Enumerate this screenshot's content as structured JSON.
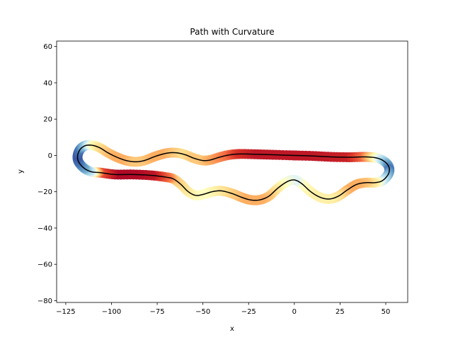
{
  "chart_data": {
    "type": "scatter",
    "title": "Path with Curvature",
    "xlabel": "x",
    "ylabel": "y",
    "xlim": [
      -130,
      62
    ],
    "ylim": [
      -81,
      63
    ],
    "x_ticks": [
      -125,
      -100,
      -75,
      -50,
      -25,
      0,
      25,
      50
    ],
    "x_tick_labels": [
      "−125",
      "−100",
      "−75",
      "−50",
      "−25",
      "0",
      "25",
      "50"
    ],
    "y_ticks": [
      -80,
      -60,
      -40,
      -20,
      0,
      20,
      40,
      60
    ],
    "y_tick_labels": [
      "−80",
      "−60",
      "−40",
      "−20",
      "0",
      "20",
      "40",
      "60"
    ],
    "grid": false,
    "colormap": "RdYlBu",
    "colormap_stops": [
      "#a50026",
      "#d73027",
      "#f46d43",
      "#fdae61",
      "#fee090",
      "#ffffbf",
      "#e0f3f8",
      "#abd9e9",
      "#74add1",
      "#4575b4",
      "#313695"
    ],
    "path_line_color": "#000000",
    "series": [
      {
        "points": [
          {
            "x": 0,
            "y": 0,
            "c": 0.05
          },
          {
            "x": 10,
            "y": -0.3,
            "c": 0.05
          },
          {
            "x": 20,
            "y": -0.8,
            "c": 0.06
          },
          {
            "x": 30,
            "y": -1.0,
            "c": 0.07
          },
          {
            "x": 38,
            "y": -0.8,
            "c": 0.2
          },
          {
            "x": 44,
            "y": -1.2,
            "c": 0.45
          },
          {
            "x": 48,
            "y": -2.5,
            "c": 0.65
          },
          {
            "x": 51,
            "y": -5,
            "c": 0.8
          },
          {
            "x": 52,
            "y": -8,
            "c": 0.9
          },
          {
            "x": 51,
            "y": -11,
            "c": 0.8
          },
          {
            "x": 48,
            "y": -14,
            "c": 0.65
          },
          {
            "x": 44,
            "y": -15,
            "c": 0.45
          },
          {
            "x": 39,
            "y": -15,
            "c": 0.35
          },
          {
            "x": 34,
            "y": -16,
            "c": 0.3
          },
          {
            "x": 29,
            "y": -19,
            "c": 0.3
          },
          {
            "x": 24,
            "y": -22.5,
            "c": 0.4
          },
          {
            "x": 19,
            "y": -24,
            "c": 0.45
          },
          {
            "x": 14,
            "y": -23,
            "c": 0.45
          },
          {
            "x": 9,
            "y": -20,
            "c": 0.45
          },
          {
            "x": 4,
            "y": -15.5,
            "c": 0.5
          },
          {
            "x": 0,
            "y": -13.5,
            "c": 0.6
          },
          {
            "x": -4,
            "y": -14.5,
            "c": 0.55
          },
          {
            "x": -9,
            "y": -18,
            "c": 0.45
          },
          {
            "x": -14,
            "y": -22.5,
            "c": 0.35
          },
          {
            "x": -19,
            "y": -24.5,
            "c": 0.3
          },
          {
            "x": -24,
            "y": -24.5,
            "c": 0.3
          },
          {
            "x": -29,
            "y": -23,
            "c": 0.3
          },
          {
            "x": -34,
            "y": -21,
            "c": 0.35
          },
          {
            "x": -40,
            "y": -19.5,
            "c": 0.4
          },
          {
            "x": -45,
            "y": -20,
            "c": 0.45
          },
          {
            "x": -50,
            "y": -21.5,
            "c": 0.5
          },
          {
            "x": -54,
            "y": -22,
            "c": 0.5
          },
          {
            "x": -58,
            "y": -20,
            "c": 0.45
          },
          {
            "x": -62,
            "y": -16,
            "c": 0.4
          },
          {
            "x": -66,
            "y": -13,
            "c": 0.35
          },
          {
            "x": -70,
            "y": -12,
            "c": 0.2
          },
          {
            "x": -78,
            "y": -11,
            "c": 0.05
          },
          {
            "x": -88,
            "y": -10.5,
            "c": 0.02
          },
          {
            "x": -98,
            "y": -10.5,
            "c": 0.02
          },
          {
            "x": -106,
            "y": -9.5,
            "c": 0.15
          },
          {
            "x": -111,
            "y": -9,
            "c": 0.6
          },
          {
            "x": -115,
            "y": -7,
            "c": 0.8
          },
          {
            "x": -118,
            "y": -3.5,
            "c": 0.9
          },
          {
            "x": -118.5,
            "y": 0,
            "c": 0.95
          },
          {
            "x": -117,
            "y": 3.5,
            "c": 0.9
          },
          {
            "x": -114,
            "y": 5.5,
            "c": 0.75
          },
          {
            "x": -110,
            "y": 5.5,
            "c": 0.5
          },
          {
            "x": -106,
            "y": 4,
            "c": 0.4
          },
          {
            "x": -102,
            "y": 1.5,
            "c": 0.35
          },
          {
            "x": -97,
            "y": -1,
            "c": 0.3
          },
          {
            "x": -92,
            "y": -2.8,
            "c": 0.3
          },
          {
            "x": -87,
            "y": -3.5,
            "c": 0.35
          },
          {
            "x": -82,
            "y": -2.8,
            "c": 0.35
          },
          {
            "x": -76,
            "y": -0.5,
            "c": 0.3
          },
          {
            "x": -70,
            "y": 1.2,
            "c": 0.3
          },
          {
            "x": -65,
            "y": 1.5,
            "c": 0.35
          },
          {
            "x": -60,
            "y": 0.5,
            "c": 0.4
          },
          {
            "x": -55,
            "y": -1.5,
            "c": 0.35
          },
          {
            "x": -50,
            "y": -2.8,
            "c": 0.35
          },
          {
            "x": -46,
            "y": -2.5,
            "c": 0.3
          },
          {
            "x": -41,
            "y": -1,
            "c": 0.25
          },
          {
            "x": -36,
            "y": 0.2,
            "c": 0.2
          },
          {
            "x": -30,
            "y": 0.8,
            "c": 0.1
          },
          {
            "x": -20,
            "y": 0.6,
            "c": 0.05
          },
          {
            "x": -10,
            "y": 0.3,
            "c": 0.05
          },
          {
            "x": 0,
            "y": 0,
            "c": 0.05
          }
        ]
      }
    ]
  }
}
